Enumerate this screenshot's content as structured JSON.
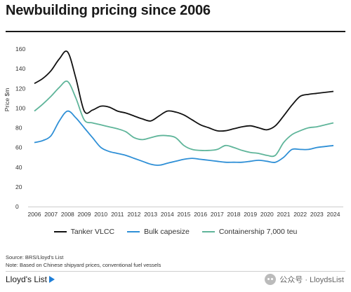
{
  "title": "Newbuilding pricing since 2006",
  "footer": {
    "source": "Source: BRS/Lloyd's List",
    "note": "Note: Based on Chinese shipyard prices, conventional fuel vessels",
    "brand": "Lloyd's List",
    "wechat": "公众号 · LloydsList"
  },
  "colors": {
    "vlcc": "#111111",
    "capesize": "#2e8fd6",
    "container": "#5fb59a",
    "title_rule": "#1a1a1a"
  },
  "icons": {
    "brand": "lloyds-list-logo-mark",
    "wechat": "wechat-icon"
  },
  "chart_data": {
    "type": "line",
    "ylabel": "Price $m",
    "xlabel": "",
    "ylim": [
      0,
      160
    ],
    "yticks": [
      "0",
      "20",
      "40",
      "60",
      "80",
      "100",
      "120",
      "140",
      "160"
    ],
    "grid": false,
    "legend_position": "bottom",
    "x": [
      "2006",
      "2006.5",
      "2007",
      "2007.5",
      "2008",
      "2008.5",
      "2009",
      "2009.5",
      "2010",
      "2010.5",
      "2011",
      "2011.5",
      "2012",
      "2012.5",
      "2013",
      "2013.5",
      "2014",
      "2014.5",
      "2015",
      "2015.5",
      "2016",
      "2016.5",
      "2017",
      "2017.5",
      "2018",
      "2018.5",
      "2019",
      "2019.5",
      "2020",
      "2020.5",
      "2021",
      "2021.5",
      "2022",
      "2022.5",
      "2023",
      "2023.5",
      "2024"
    ],
    "xticks": [
      "2006",
      "2007",
      "2008",
      "2009",
      "2010",
      "2011",
      "2012",
      "2013",
      "2014",
      "2015",
      "2016",
      "2017",
      "2018",
      "2019",
      "2020",
      "2021",
      "2022",
      "2023",
      "2024"
    ],
    "series": [
      {
        "name": "Tanker VLCC",
        "values": [
          125,
          130,
          138,
          150,
          157,
          130,
          97,
          98,
          102,
          101,
          97,
          95,
          92,
          89,
          87,
          92,
          97,
          96,
          93,
          88,
          83,
          80,
          77,
          77,
          79,
          81,
          82,
          80,
          78,
          82,
          92,
          103,
          112,
          114,
          115,
          116,
          117
        ]
      },
      {
        "name": "Bulk capesize",
        "values": [
          65,
          67,
          72,
          87,
          97,
          90,
          80,
          70,
          60,
          56,
          54,
          52,
          49,
          46,
          43,
          42,
          44,
          46,
          48,
          49,
          48,
          47,
          46,
          45,
          45,
          45,
          46,
          47,
          46,
          45,
          50,
          58,
          58,
          58,
          60,
          61,
          62
        ]
      },
      {
        "name": "Containership 7,000 teu",
        "values": [
          97,
          104,
          112,
          121,
          127,
          110,
          88,
          85,
          83,
          81,
          79,
          76,
          70,
          68,
          70,
          72,
          72,
          70,
          62,
          58,
          57,
          57,
          58,
          62,
          60,
          57,
          55,
          54,
          52,
          52,
          65,
          73,
          77,
          80,
          81,
          83,
          85
        ]
      }
    ]
  }
}
